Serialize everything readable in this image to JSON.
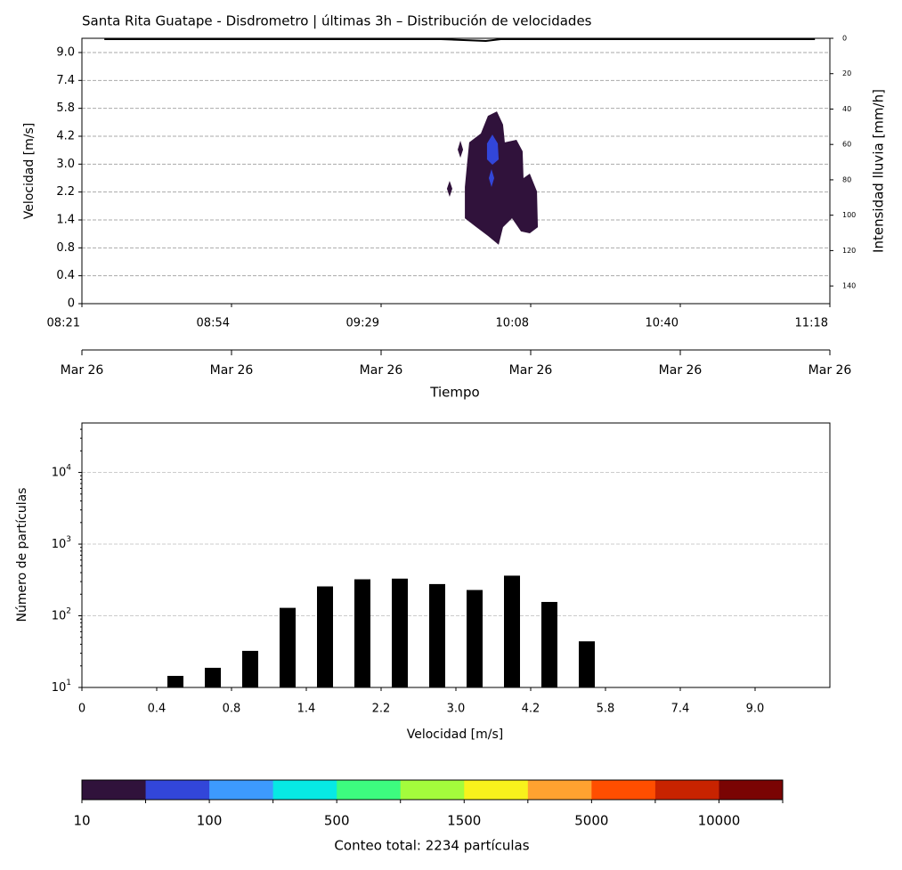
{
  "chart_data": [
    {
      "type": "contour",
      "title": "Santa Rita Guatape - Disdrometro | últimas 3h – Distribución de velocidades",
      "ylabel": "Velocidad [m/s]",
      "y2label": "Intensidad lluvia [mm/h]",
      "xlabel": "Tiempo",
      "categories": [
        "08:21",
        "08:54",
        "09:29",
        "10:08",
        "10:40",
        "11:18"
      ],
      "date_labels": [
        "Mar 26",
        "Mar 26",
        "Mar 26",
        "Mar 26",
        "Mar 26",
        "Mar 26"
      ],
      "ycategories": [
        "0",
        "0.4",
        "0.8",
        "1.4",
        "2.2",
        "3.0",
        "4.2",
        "5.8",
        "7.4",
        "9.0"
      ],
      "xlim": [
        0,
        5
      ],
      "ylim": [
        0,
        9.51
      ],
      "y2lim": [
        0,
        150
      ],
      "y2ticks": [
        0,
        20,
        40,
        60,
        80,
        100,
        120,
        140
      ],
      "y2_inverted": true,
      "grid": true,
      "contours": [
        {
          "color": "#30123b",
          "x": [
            2.714,
            2.774,
            2.815,
            2.827,
            2.905,
            2.946,
            2.952,
            2.994,
            3.042,
            3.048,
            2.994,
            2.935,
            2.875,
            2.815,
            2.786,
            2.714,
            2.637,
            2.56,
            2.56,
            2.577,
            2.589,
            2.667
          ],
          "y": [
            6.73,
            6.89,
            6.42,
            5.78,
            5.87,
            5.46,
            4.5,
            4.66,
            4.02,
            2.74,
            2.52,
            2.59,
            3.06,
            2.74,
            2.11,
            2.43,
            2.74,
            3.06,
            4.18,
            5.14,
            5.78,
            6.1
          ]
        },
        {
          "color": "#30123b",
          "x": [
            2.53,
            2.548,
            2.53,
            2.512
          ],
          "y": [
            5.84,
            5.52,
            5.23,
            5.52
          ]
        },
        {
          "color": "#30123b",
          "x": [
            2.458,
            2.476,
            2.458,
            2.44
          ],
          "y": [
            4.4,
            4.12,
            3.83,
            4.12
          ]
        },
        {
          "color": "#3246d9",
          "x": [
            2.744,
            2.78,
            2.786,
            2.744,
            2.708,
            2.708
          ],
          "y": [
            6.06,
            5.74,
            5.17,
            4.98,
            5.17,
            5.74
          ]
        },
        {
          "color": "#3246d9",
          "x": [
            2.738,
            2.756,
            2.738,
            2.72
          ],
          "y": [
            4.82,
            4.5,
            4.18,
            4.5
          ]
        }
      ],
      "rain": {
        "color": "#000000",
        "axis": "y2",
        "x": [
          0.15,
          0.9,
          1.6,
          2.4,
          2.7,
          2.8,
          3.3,
          4.9
        ],
        "values": [
          0.5,
          0.5,
          0.5,
          0.5,
          1.5,
          0.5,
          0.5,
          0.5
        ]
      }
    },
    {
      "type": "bar",
      "log_scale": true,
      "grid": true,
      "color": "#000000",
      "ylabel": "Número de partículas",
      "xlabel": "Velocidad [m/s]",
      "categories": [
        "0",
        "0.4",
        "0.8",
        "1.4",
        "2.2",
        "3.0",
        "4.2",
        "5.8",
        "7.4",
        "9.0"
      ],
      "xlim": [
        0,
        10
      ],
      "x": [
        1.25,
        1.75,
        2.25,
        2.75,
        3.25,
        3.75,
        4.25,
        4.75,
        5.25,
        5.75,
        6.25,
        6.75
      ],
      "values": [
        14.5,
        18.8,
        32.4,
        129,
        257,
        323,
        330,
        277,
        229,
        363,
        156,
        44
      ],
      "ylim": [
        10,
        49000
      ],
      "yticks": [
        {
          "value": 10,
          "label": "10",
          "exponent": "1"
        },
        {
          "value": 100,
          "label": "10",
          "exponent": "2"
        },
        {
          "value": 1000,
          "label": "10",
          "exponent": "3"
        },
        {
          "value": 10000,
          "label": "10",
          "exponent": "4"
        }
      ]
    },
    {
      "type": "colorbar",
      "labels": [
        "10",
        "100",
        "500",
        "1500",
        "5000",
        "10000"
      ],
      "colors": [
        "#30123b",
        "#3246d9",
        "#3d9afe",
        "#07e9e4",
        "#3dfc7f",
        "#a4fc3c",
        "#f8f21c",
        "#ffa230",
        "#ff4e00",
        "#c82300",
        "#7a0403"
      ],
      "label": "Conteo total: 2234 partículas"
    }
  ]
}
